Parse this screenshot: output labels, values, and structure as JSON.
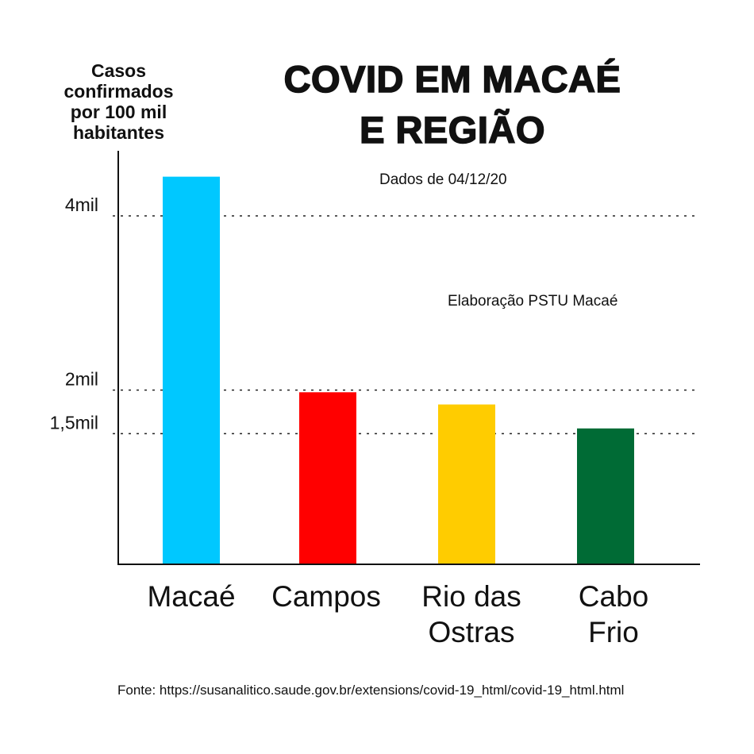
{
  "title": "COVID EM MACAÉ\nE REGIÃO",
  "note_date": "Dados de 04/12/20",
  "note_credit": "Elaboração PSTU Macaé",
  "source": "Fonte: https://susanalitico.saude.gov.br/extensions/covid-19_html/covid-19_html.html",
  "chart_data": {
    "type": "bar",
    "title": "COVID EM MACAÉ E REGIÃO",
    "ylabel": "Casos\nconfirmados\npor 100 mil\nhabitantes",
    "xlabel": "",
    "categories": [
      "Macaé",
      "Campos",
      "Rio das\nOstras",
      "Cabo\nFrio"
    ],
    "values": [
      4450,
      1975,
      1835,
      1560
    ],
    "colors": [
      "#00c8ff",
      "#ff0000",
      "#ffcc00",
      "#006b35"
    ],
    "ylim": [
      0,
      4800
    ],
    "gridlines": [
      {
        "value": 4000,
        "label": "4mil"
      },
      {
        "value": 2000,
        "label": "2mil"
      },
      {
        "value": 1500,
        "label": "1,5mil"
      }
    ],
    "grid_style": "dotted",
    "legend": "none"
  }
}
